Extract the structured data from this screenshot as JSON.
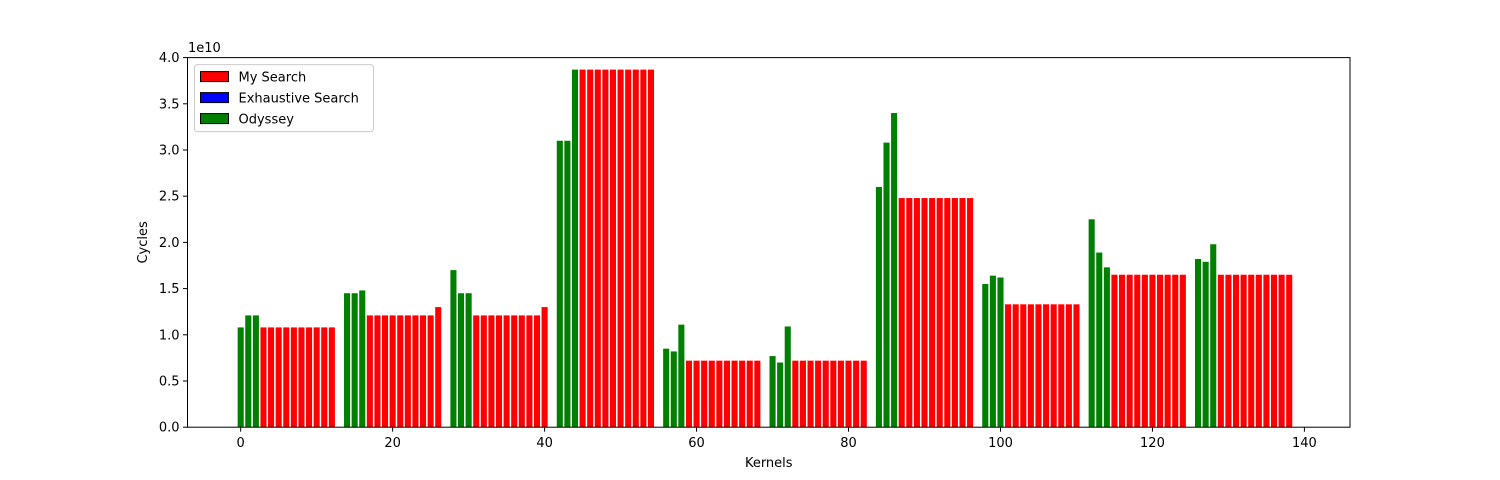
{
  "chart_data": {
    "type": "bar",
    "xlabel": "Kernels",
    "ylabel": "Cycles",
    "y_scale_label": "1e10",
    "xlim": [
      -7,
      146
    ],
    "ylim": [
      0,
      4.0
    ],
    "xticks": [
      0,
      20,
      40,
      60,
      80,
      100,
      120,
      140
    ],
    "yticks": [
      0.0,
      0.5,
      1.0,
      1.5,
      2.0,
      2.5,
      3.0,
      3.5,
      4.0
    ],
    "grid": false,
    "legend_position": "top-left",
    "series": [
      {
        "name": "My Search",
        "color": "#ff0000",
        "points": [
          {
            "x": 3,
            "y": 1.08
          },
          {
            "x": 4,
            "y": 1.08
          },
          {
            "x": 5,
            "y": 1.08
          },
          {
            "x": 6,
            "y": 1.08
          },
          {
            "x": 7,
            "y": 1.08
          },
          {
            "x": 8,
            "y": 1.08
          },
          {
            "x": 9,
            "y": 1.08
          },
          {
            "x": 10,
            "y": 1.08
          },
          {
            "x": 11,
            "y": 1.08
          },
          {
            "x": 12,
            "y": 1.08
          },
          {
            "x": 17,
            "y": 1.21
          },
          {
            "x": 18,
            "y": 1.21
          },
          {
            "x": 19,
            "y": 1.21
          },
          {
            "x": 20,
            "y": 1.21
          },
          {
            "x": 21,
            "y": 1.21
          },
          {
            "x": 22,
            "y": 1.21
          },
          {
            "x": 23,
            "y": 1.21
          },
          {
            "x": 24,
            "y": 1.21
          },
          {
            "x": 25,
            "y": 1.21
          },
          {
            "x": 26,
            "y": 1.3
          },
          {
            "x": 31,
            "y": 1.21
          },
          {
            "x": 32,
            "y": 1.21
          },
          {
            "x": 33,
            "y": 1.21
          },
          {
            "x": 34,
            "y": 1.21
          },
          {
            "x": 35,
            "y": 1.21
          },
          {
            "x": 36,
            "y": 1.21
          },
          {
            "x": 37,
            "y": 1.21
          },
          {
            "x": 38,
            "y": 1.21
          },
          {
            "x": 39,
            "y": 1.21
          },
          {
            "x": 40,
            "y": 1.3
          },
          {
            "x": 45,
            "y": 3.87
          },
          {
            "x": 46,
            "y": 3.87
          },
          {
            "x": 47,
            "y": 3.87
          },
          {
            "x": 48,
            "y": 3.87
          },
          {
            "x": 49,
            "y": 3.87
          },
          {
            "x": 50,
            "y": 3.87
          },
          {
            "x": 51,
            "y": 3.87
          },
          {
            "x": 52,
            "y": 3.87
          },
          {
            "x": 53,
            "y": 3.87
          },
          {
            "x": 54,
            "y": 3.87
          },
          {
            "x": 59,
            "y": 0.72
          },
          {
            "x": 60,
            "y": 0.72
          },
          {
            "x": 61,
            "y": 0.72
          },
          {
            "x": 62,
            "y": 0.72
          },
          {
            "x": 63,
            "y": 0.72
          },
          {
            "x": 64,
            "y": 0.72
          },
          {
            "x": 65,
            "y": 0.72
          },
          {
            "x": 66,
            "y": 0.72
          },
          {
            "x": 67,
            "y": 0.72
          },
          {
            "x": 68,
            "y": 0.72
          },
          {
            "x": 73,
            "y": 0.72
          },
          {
            "x": 74,
            "y": 0.72
          },
          {
            "x": 75,
            "y": 0.72
          },
          {
            "x": 76,
            "y": 0.72
          },
          {
            "x": 77,
            "y": 0.72
          },
          {
            "x": 78,
            "y": 0.72
          },
          {
            "x": 79,
            "y": 0.72
          },
          {
            "x": 80,
            "y": 0.72
          },
          {
            "x": 81,
            "y": 0.72
          },
          {
            "x": 82,
            "y": 0.72
          },
          {
            "x": 87,
            "y": 2.48
          },
          {
            "x": 88,
            "y": 2.48
          },
          {
            "x": 89,
            "y": 2.48
          },
          {
            "x": 90,
            "y": 2.48
          },
          {
            "x": 91,
            "y": 2.48
          },
          {
            "x": 92,
            "y": 2.48
          },
          {
            "x": 93,
            "y": 2.48
          },
          {
            "x": 94,
            "y": 2.48
          },
          {
            "x": 95,
            "y": 2.48
          },
          {
            "x": 96,
            "y": 2.48
          },
          {
            "x": 101,
            "y": 1.33
          },
          {
            "x": 102,
            "y": 1.33
          },
          {
            "x": 103,
            "y": 1.33
          },
          {
            "x": 104,
            "y": 1.33
          },
          {
            "x": 105,
            "y": 1.33
          },
          {
            "x": 106,
            "y": 1.33
          },
          {
            "x": 107,
            "y": 1.33
          },
          {
            "x": 108,
            "y": 1.33
          },
          {
            "x": 109,
            "y": 1.33
          },
          {
            "x": 110,
            "y": 1.33
          },
          {
            "x": 115,
            "y": 1.65
          },
          {
            "x": 116,
            "y": 1.65
          },
          {
            "x": 117,
            "y": 1.65
          },
          {
            "x": 118,
            "y": 1.65
          },
          {
            "x": 119,
            "y": 1.65
          },
          {
            "x": 120,
            "y": 1.65
          },
          {
            "x": 121,
            "y": 1.65
          },
          {
            "x": 122,
            "y": 1.65
          },
          {
            "x": 123,
            "y": 1.65
          },
          {
            "x": 124,
            "y": 1.65
          },
          {
            "x": 129,
            "y": 1.65
          },
          {
            "x": 130,
            "y": 1.65
          },
          {
            "x": 131,
            "y": 1.65
          },
          {
            "x": 132,
            "y": 1.65
          },
          {
            "x": 133,
            "y": 1.65
          },
          {
            "x": 134,
            "y": 1.65
          },
          {
            "x": 135,
            "y": 1.65
          },
          {
            "x": 136,
            "y": 1.65
          },
          {
            "x": 137,
            "y": 1.65
          },
          {
            "x": 138,
            "y": 1.65
          }
        ]
      },
      {
        "name": "Exhaustive Search",
        "color": "#0000ff",
        "points": []
      },
      {
        "name": "Odyssey",
        "color": "#008000",
        "points": [
          {
            "x": 0,
            "y": 1.08
          },
          {
            "x": 1,
            "y": 1.21
          },
          {
            "x": 2,
            "y": 1.21
          },
          {
            "x": 14,
            "y": 1.45
          },
          {
            "x": 15,
            "y": 1.45
          },
          {
            "x": 16,
            "y": 1.48
          },
          {
            "x": 28,
            "y": 1.7
          },
          {
            "x": 29,
            "y": 1.45
          },
          {
            "x": 30,
            "y": 1.45
          },
          {
            "x": 42,
            "y": 3.1
          },
          {
            "x": 43,
            "y": 3.1
          },
          {
            "x": 44,
            "y": 3.87
          },
          {
            "x": 56,
            "y": 0.85
          },
          {
            "x": 57,
            "y": 0.82
          },
          {
            "x": 58,
            "y": 1.11
          },
          {
            "x": 70,
            "y": 0.77
          },
          {
            "x": 71,
            "y": 0.7
          },
          {
            "x": 72,
            "y": 1.09
          },
          {
            "x": 84,
            "y": 2.6
          },
          {
            "x": 85,
            "y": 3.08
          },
          {
            "x": 86,
            "y": 3.4
          },
          {
            "x": 98,
            "y": 1.55
          },
          {
            "x": 99,
            "y": 1.64
          },
          {
            "x": 100,
            "y": 1.62
          },
          {
            "x": 112,
            "y": 2.25
          },
          {
            "x": 113,
            "y": 1.89
          },
          {
            "x": 114,
            "y": 1.73
          },
          {
            "x": 126,
            "y": 1.82
          },
          {
            "x": 127,
            "y": 1.79
          },
          {
            "x": 128,
            "y": 1.98
          }
        ]
      }
    ]
  }
}
